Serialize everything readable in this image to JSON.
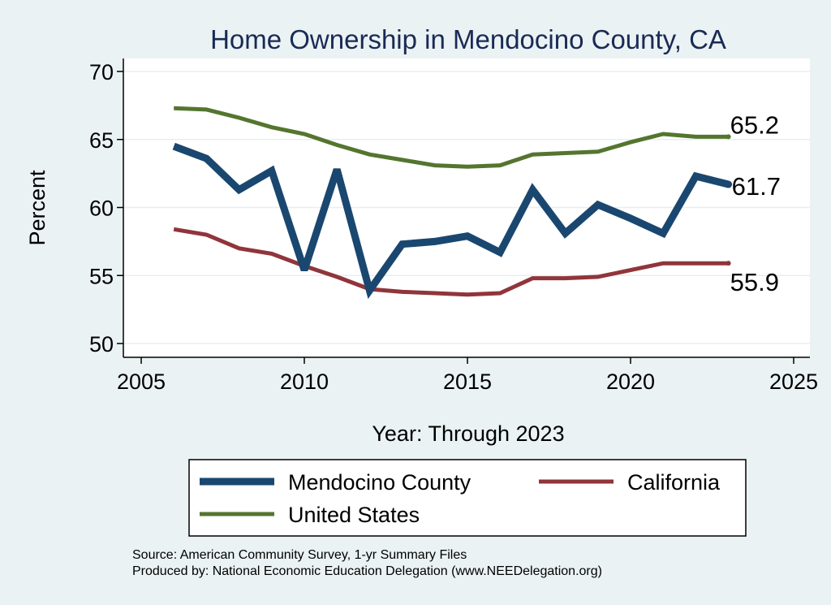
{
  "chart_data": {
    "type": "line",
    "title": "Home Ownership in Mendocino County, CA",
    "xlabel": "Year: Through 2023",
    "ylabel": "Percent",
    "xlim": [
      2005,
      2025
    ],
    "ylim": [
      50,
      70
    ],
    "xticks": [
      2005,
      2010,
      2015,
      2020,
      2025
    ],
    "yticks": [
      50,
      55,
      60,
      65,
      70
    ],
    "grid": true,
    "legend_position": "bottom",
    "series": [
      {
        "name": "Mendocino County",
        "color": "#1a476f",
        "x": [
          2006,
          2007,
          2008,
          2009,
          2010,
          2011,
          2012,
          2013,
          2014,
          2015,
          2016,
          2017,
          2018,
          2019,
          2020,
          2021,
          2022,
          2023
        ],
        "values": [
          64.5,
          63.6,
          61.3,
          62.7,
          55.4,
          62.8,
          53.9,
          57.3,
          57.5,
          57.9,
          56.7,
          61.3,
          58.1,
          60.2,
          59.2,
          58.1,
          62.3,
          61.7
        ],
        "end_label": "61.7"
      },
      {
        "name": "California",
        "color": "#90353b",
        "x": [
          2006,
          2007,
          2008,
          2009,
          2010,
          2011,
          2012,
          2013,
          2014,
          2015,
          2016,
          2017,
          2018,
          2019,
          2020,
          2021,
          2022,
          2023
        ],
        "values": [
          58.4,
          58.0,
          57.0,
          56.6,
          55.7,
          54.9,
          54.0,
          53.8,
          53.7,
          53.6,
          53.7,
          54.8,
          54.8,
          54.9,
          55.4,
          55.9,
          55.9,
          55.9
        ],
        "end_label": "55.9"
      },
      {
        "name": "United States",
        "color": "#55752f",
        "x": [
          2006,
          2007,
          2008,
          2009,
          2010,
          2011,
          2012,
          2013,
          2014,
          2015,
          2016,
          2017,
          2018,
          2019,
          2020,
          2021,
          2022,
          2023
        ],
        "values": [
          67.3,
          67.2,
          66.6,
          65.9,
          65.4,
          64.6,
          63.9,
          63.5,
          63.1,
          63.0,
          63.1,
          63.9,
          64.0,
          64.1,
          64.8,
          65.4,
          65.2,
          65.2
        ],
        "end_label": "65.2"
      }
    ]
  },
  "footer": {
    "source": "Source: American Community Survey, 1-yr Summary Files",
    "produced": "Produced by: National Economic Education Delegation (www.NEEDelegation.org)"
  }
}
